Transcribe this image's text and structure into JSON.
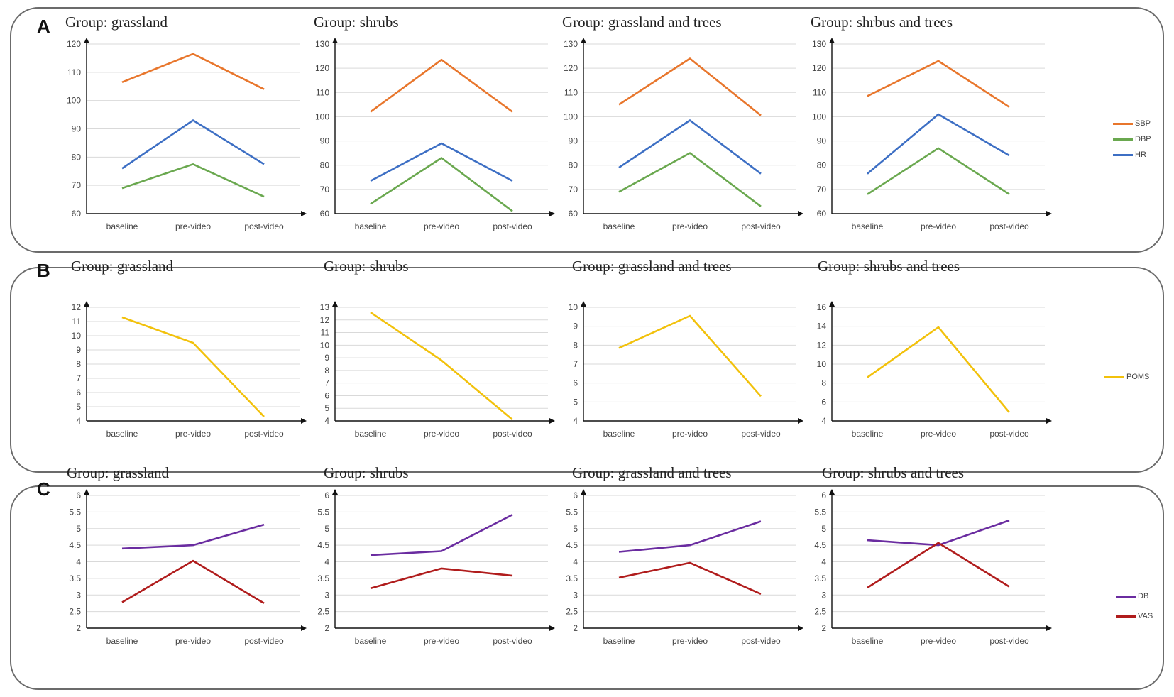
{
  "panels": [
    {
      "label": "A",
      "legend": [
        {
          "name": "SBP",
          "color": "#e8762c"
        },
        {
          "name": "DBP",
          "color": "#6aa84f"
        },
        {
          "name": "HR",
          "color": "#3d6fc4"
        }
      ]
    },
    {
      "label": "B",
      "legend": [
        {
          "name": "POMS",
          "color": "#f2c10b"
        }
      ]
    },
    {
      "label": "C",
      "legend": [
        {
          "name": "DB",
          "color": "#6a2ca0"
        },
        {
          "name": "VAS",
          "color": "#b01c1c"
        }
      ]
    }
  ],
  "chart_data": [
    {
      "type": "line",
      "panel": "A",
      "title": "Group: grassland",
      "categories": [
        "baseline",
        "pre-video",
        "post-video"
      ],
      "ylim": [
        60,
        120
      ],
      "yticks": [
        60,
        70,
        80,
        90,
        100,
        110,
        120
      ],
      "series": [
        {
          "name": "SBP",
          "color": "#e8762c",
          "values": [
            106.5,
            116.5,
            104
          ]
        },
        {
          "name": "DBP",
          "color": "#6aa84f",
          "values": [
            69,
            77.5,
            66
          ]
        },
        {
          "name": "HR",
          "color": "#3d6fc4",
          "values": [
            76,
            93,
            77.5
          ]
        }
      ]
    },
    {
      "type": "line",
      "panel": "A",
      "title": "Group: shrubs",
      "categories": [
        "baseline",
        "pre-video",
        "post-video"
      ],
      "ylim": [
        60,
        130
      ],
      "yticks": [
        60,
        70,
        80,
        90,
        100,
        110,
        120,
        130
      ],
      "series": [
        {
          "name": "SBP",
          "color": "#e8762c",
          "values": [
            102,
            123.5,
            102
          ]
        },
        {
          "name": "DBP",
          "color": "#6aa84f",
          "values": [
            64,
            83,
            61
          ]
        },
        {
          "name": "HR",
          "color": "#3d6fc4",
          "values": [
            73.5,
            89,
            73.5
          ]
        }
      ]
    },
    {
      "type": "line",
      "panel": "A",
      "title": "Group: grassland and trees",
      "categories": [
        "baseline",
        "pre-video",
        "post-video"
      ],
      "ylim": [
        60,
        130
      ],
      "yticks": [
        60,
        70,
        80,
        90,
        100,
        110,
        120,
        130
      ],
      "series": [
        {
          "name": "SBP",
          "color": "#e8762c",
          "values": [
            105,
            124,
            100.5
          ]
        },
        {
          "name": "DBP",
          "color": "#6aa84f",
          "values": [
            69,
            85,
            63
          ]
        },
        {
          "name": "HR",
          "color": "#3d6fc4",
          "values": [
            79,
            98.5,
            76.5
          ]
        }
      ]
    },
    {
      "type": "line",
      "panel": "A",
      "title": "Group: shrbus and trees",
      "categories": [
        "baseline",
        "pre-video",
        "post-video"
      ],
      "ylim": [
        60,
        130
      ],
      "yticks": [
        60,
        70,
        80,
        90,
        100,
        110,
        120,
        130
      ],
      "series": [
        {
          "name": "SBP",
          "color": "#e8762c",
          "values": [
            108.5,
            123,
            104
          ]
        },
        {
          "name": "DBP",
          "color": "#6aa84f",
          "values": [
            68,
            87,
            68
          ]
        },
        {
          "name": "HR",
          "color": "#3d6fc4",
          "values": [
            76.5,
            101,
            84
          ]
        }
      ]
    },
    {
      "type": "line",
      "panel": "B",
      "title": "Group: grassland",
      "categories": [
        "baseline",
        "pre-video",
        "post-video"
      ],
      "ylim": [
        4,
        12
      ],
      "yticks": [
        4,
        5,
        6,
        7,
        8,
        9,
        10,
        11,
        12
      ],
      "series": [
        {
          "name": "POMS",
          "color": "#f2c10b",
          "values": [
            11.3,
            9.5,
            4.3
          ]
        }
      ]
    },
    {
      "type": "line",
      "panel": "B",
      "title": "Group: shrubs",
      "categories": [
        "baseline",
        "pre-video",
        "post-video"
      ],
      "ylim": [
        4,
        13
      ],
      "yticks": [
        4,
        5,
        6,
        7,
        8,
        9,
        10,
        11,
        12,
        13
      ],
      "series": [
        {
          "name": "POMS",
          "color": "#f2c10b",
          "values": [
            12.6,
            8.8,
            4.1
          ]
        }
      ]
    },
    {
      "type": "line",
      "panel": "B",
      "title": "Group: grassland and trees",
      "categories": [
        "baseline",
        "pre-video",
        "post-video"
      ],
      "ylim": [
        4,
        10
      ],
      "yticks": [
        4,
        5,
        6,
        7,
        8,
        9,
        10
      ],
      "series": [
        {
          "name": "POMS",
          "color": "#f2c10b",
          "values": [
            7.85,
            9.55,
            5.3
          ]
        }
      ]
    },
    {
      "type": "line",
      "panel": "B",
      "title": "Group: shrubs and trees",
      "categories": [
        "baseline",
        "pre-video",
        "post-video"
      ],
      "ylim": [
        4,
        16
      ],
      "yticks": [
        4,
        6,
        8,
        10,
        12,
        14,
        16
      ],
      "series": [
        {
          "name": "POMS",
          "color": "#f2c10b",
          "values": [
            8.6,
            13.9,
            4.9
          ]
        }
      ]
    },
    {
      "type": "line",
      "panel": "C",
      "title": "Group: grassland",
      "categories": [
        "baseline",
        "pre-video",
        "post-video"
      ],
      "ylim": [
        2,
        6
      ],
      "yticks": [
        2,
        2.5,
        3,
        3.5,
        4,
        4.5,
        5,
        5.5,
        6
      ],
      "series": [
        {
          "name": "DB",
          "color": "#6a2ca0",
          "values": [
            4.4,
            4.5,
            5.12
          ]
        },
        {
          "name": "VAS",
          "color": "#b01c1c",
          "values": [
            2.78,
            4.03,
            2.75
          ]
        }
      ]
    },
    {
      "type": "line",
      "panel": "C",
      "title": "Group: shrubs",
      "categories": [
        "baseline",
        "pre-video",
        "post-video"
      ],
      "ylim": [
        2,
        6
      ],
      "yticks": [
        2,
        2.5,
        3,
        3.5,
        4,
        4.5,
        5,
        5.5,
        6
      ],
      "series": [
        {
          "name": "DB",
          "color": "#6a2ca0",
          "values": [
            4.2,
            4.32,
            5.42
          ]
        },
        {
          "name": "VAS",
          "color": "#b01c1c",
          "values": [
            3.2,
            3.8,
            3.58
          ]
        }
      ]
    },
    {
      "type": "line",
      "panel": "C",
      "title": "Group: grassland and trees",
      "categories": [
        "baseline",
        "pre-video",
        "post-video"
      ],
      "ylim": [
        2,
        6
      ],
      "yticks": [
        2,
        2.5,
        3,
        3.5,
        4,
        4.5,
        5,
        5.5,
        6
      ],
      "series": [
        {
          "name": "DB",
          "color": "#6a2ca0",
          "values": [
            4.3,
            4.5,
            5.22
          ]
        },
        {
          "name": "VAS",
          "color": "#b01c1c",
          "values": [
            3.52,
            3.97,
            3.03
          ]
        }
      ]
    },
    {
      "type": "line",
      "panel": "C",
      "title": "Group: shrubs and trees",
      "categories": [
        "baseline",
        "pre-video",
        "post-video"
      ],
      "ylim": [
        2,
        6
      ],
      "yticks": [
        2,
        2.5,
        3,
        3.5,
        4,
        4.5,
        5,
        5.5,
        6
      ],
      "series": [
        {
          "name": "DB",
          "color": "#6a2ca0",
          "values": [
            4.65,
            4.5,
            5.25
          ]
        },
        {
          "name": "VAS",
          "color": "#b01c1c",
          "values": [
            3.22,
            4.57,
            3.25
          ]
        }
      ]
    }
  ]
}
